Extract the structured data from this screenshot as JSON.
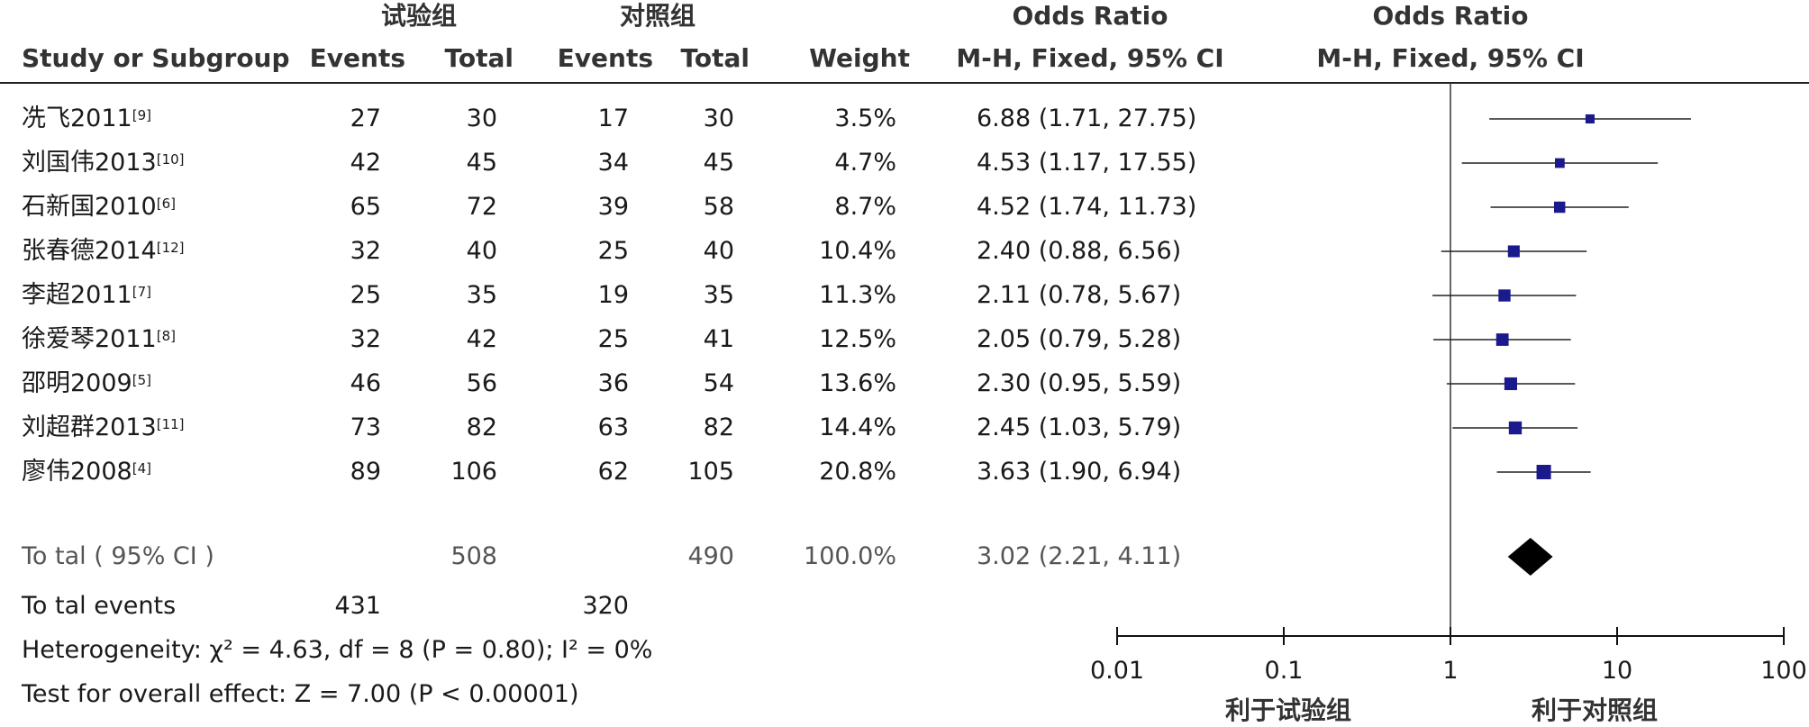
{
  "header": {
    "group_exp": "试验组",
    "group_ctrl": "对照组",
    "or_col_title": "Odds Ratio",
    "plot_title": "Odds Ratio",
    "study_col": "Study or Subgroup",
    "events": "Events",
    "total": "Total",
    "weight": "Weight",
    "method": "M-H, Fixed, 95% CI",
    "plot_method": "M-H, Fixed, 95% CI"
  },
  "studies": [
    {
      "name": "冼飞2011",
      "ref": "[9]",
      "e_exp": "27",
      "t_exp": "30",
      "e_ctrl": "17",
      "t_ctrl": "30",
      "weight": "3.5%",
      "ci_text": "6.88 (1.71, 27.75)"
    },
    {
      "name": "刘国伟2013",
      "ref": "[10]",
      "e_exp": "42",
      "t_exp": "45",
      "e_ctrl": "34",
      "t_ctrl": "45",
      "weight": "4.7%",
      "ci_text": "4.53 (1.17, 17.55)"
    },
    {
      "name": "石新国2010",
      "ref": "[6]",
      "e_exp": "65",
      "t_exp": "72",
      "e_ctrl": "39",
      "t_ctrl": "58",
      "weight": "8.7%",
      "ci_text": "4.52 (1.74, 11.73)"
    },
    {
      "name": "张春德2014",
      "ref": "[12]",
      "e_exp": "32",
      "t_exp": "40",
      "e_ctrl": "25",
      "t_ctrl": "40",
      "weight": "10.4%",
      "ci_text": "2.40 (0.88, 6.56)"
    },
    {
      "name": "李超2011",
      "ref": "[7]",
      "e_exp": "25",
      "t_exp": "35",
      "e_ctrl": "19",
      "t_ctrl": "35",
      "weight": "11.3%",
      "ci_text": "2.11 (0.78, 5.67)"
    },
    {
      "name": "徐爱琴2011",
      "ref": "[8]",
      "e_exp": "32",
      "t_exp": "42",
      "e_ctrl": "25",
      "t_ctrl": "41",
      "weight": "12.5%",
      "ci_text": "2.05 (0.79, 5.28)"
    },
    {
      "name": "邵明2009",
      "ref": "[5]",
      "e_exp": "46",
      "t_exp": "56",
      "e_ctrl": "36",
      "t_ctrl": "54",
      "weight": "13.6%",
      "ci_text": "2.30 (0.95, 5.59)"
    },
    {
      "name": "刘超群2013",
      "ref": "[11]",
      "e_exp": "73",
      "t_exp": "82",
      "e_ctrl": "63",
      "t_ctrl": "82",
      "weight": "14.4%",
      "ci_text": "2.45 (1.03, 5.79)"
    },
    {
      "name": "廖伟2008",
      "ref": "[4]",
      "e_exp": "89",
      "t_exp": "106",
      "e_ctrl": "62",
      "t_ctrl": "105",
      "weight": "20.8%",
      "ci_text": "3.63 (1.90, 6.94)"
    }
  ],
  "total": {
    "label": "To tal ( 95% CI )",
    "t_exp": "508",
    "t_ctrl": "490",
    "weight": "100.0%",
    "ci_text": "3.02 (2.21, 4.11)"
  },
  "total_events": {
    "label": "To tal events",
    "e_exp": "431",
    "e_ctrl": "320"
  },
  "heterogeneity": {
    "prefix": "Heterogeneity:",
    "chi": "χ",
    "formula": "² = 4.63, df = 8 (P = 0.80); I² = 0%"
  },
  "overall_effect": "Test for overall effect: Z = 7.00 (P < 0.00001)",
  "axis": {
    "ticks": [
      "0.01",
      "0.1",
      "1",
      "10",
      "100"
    ],
    "favours_left": "利于试验组",
    "favours_right": "利于对照组"
  },
  "chart_data": {
    "type": "forest",
    "scale": "log",
    "xlim": [
      0.01,
      100
    ],
    "reference_line": 1,
    "marker_color": "#1a1a8c",
    "studies": [
      {
        "or": 6.88,
        "lo": 1.71,
        "hi": 27.75,
        "weight": 3.5
      },
      {
        "or": 4.53,
        "lo": 1.17,
        "hi": 17.55,
        "weight": 4.7
      },
      {
        "or": 4.52,
        "lo": 1.74,
        "hi": 11.73,
        "weight": 8.7
      },
      {
        "or": 2.4,
        "lo": 0.88,
        "hi": 6.56,
        "weight": 10.4
      },
      {
        "or": 2.11,
        "lo": 0.78,
        "hi": 5.67,
        "weight": 11.3
      },
      {
        "or": 2.05,
        "lo": 0.79,
        "hi": 5.28,
        "weight": 12.5
      },
      {
        "or": 2.3,
        "lo": 0.95,
        "hi": 5.59,
        "weight": 13.6
      },
      {
        "or": 2.45,
        "lo": 1.03,
        "hi": 5.79,
        "weight": 14.4
      },
      {
        "or": 3.63,
        "lo": 1.9,
        "hi": 6.94,
        "weight": 20.8
      }
    ],
    "pooled": {
      "or": 3.02,
      "lo": 2.21,
      "hi": 4.11
    }
  }
}
